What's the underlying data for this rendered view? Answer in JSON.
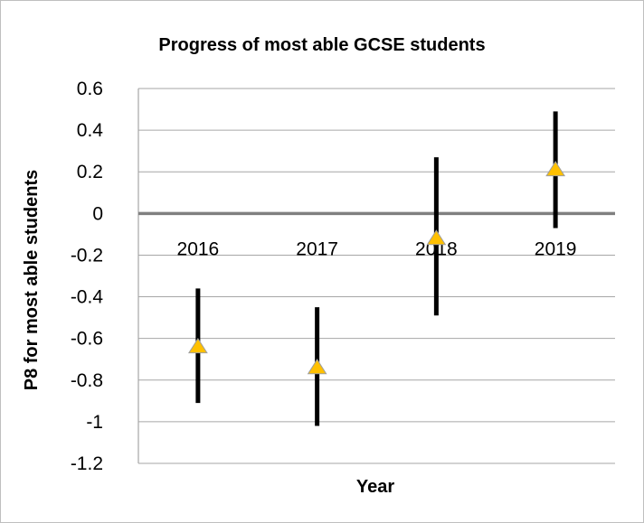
{
  "chart_data": {
    "type": "scatter",
    "title": "Progress of most able GCSE students",
    "xlabel": "Year",
    "ylabel": "P8 for most able students",
    "categories": [
      "2016",
      "2017",
      "2018",
      "2019"
    ],
    "series": [
      {
        "values": [
          -0.64,
          -0.74,
          -0.12,
          0.21
        ],
        "error_low": [
          -0.91,
          -1.02,
          -0.49,
          -0.07
        ],
        "error_high": [
          -0.36,
          -0.45,
          0.27,
          0.49
        ]
      }
    ],
    "ylim": [
      -1.2,
      0.6
    ],
    "yticks": [
      "0.6",
      "0.4",
      "0.2",
      "0",
      "-0.2",
      "-0.4",
      "-0.6",
      "-0.8",
      "-1",
      "-1.2"
    ],
    "grid": true,
    "colors": {
      "marker": "#FFC000",
      "marker_edge": "#9E9E9E",
      "error_bar": "#000000",
      "gridline": "#A6A6A6",
      "zero_line": "#808080"
    }
  }
}
